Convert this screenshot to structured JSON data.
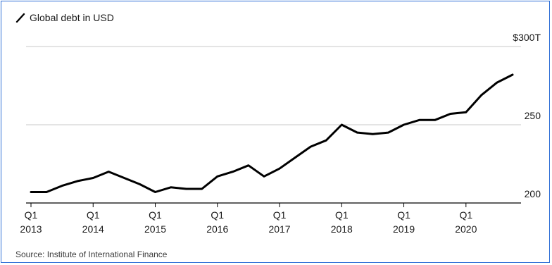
{
  "legend": {
    "label": "Global debt in USD",
    "icon": "diagonal-line-icon"
  },
  "source": "Source: Institute of International Finance",
  "chart_data": {
    "type": "line",
    "title": "",
    "xlabel": "",
    "ylabel": "",
    "ylim": [
      200,
      300
    ],
    "y_ticks": [
      {
        "value": 300,
        "label": "$300T"
      },
      {
        "value": 250,
        "label": "250"
      },
      {
        "value": 200,
        "label": "200"
      }
    ],
    "x_ticks": [
      {
        "q": "Q1",
        "year": "2013"
      },
      {
        "q": "Q1",
        "year": "2014"
      },
      {
        "q": "Q1",
        "year": "2015"
      },
      {
        "q": "Q1",
        "year": "2016"
      },
      {
        "q": "Q1",
        "year": "2017"
      },
      {
        "q": "Q1",
        "year": "2018"
      },
      {
        "q": "Q1",
        "year": "2019"
      },
      {
        "q": "Q1",
        "year": "2020"
      }
    ],
    "grid": "horizontal",
    "line_color": "#000000",
    "series": [
      {
        "name": "Global debt in USD",
        "x": [
          "2013-Q1",
          "2013-Q2",
          "2013-Q3",
          "2013-Q4",
          "2014-Q1",
          "2014-Q2",
          "2014-Q3",
          "2014-Q4",
          "2015-Q1",
          "2015-Q2",
          "2015-Q3",
          "2015-Q4",
          "2016-Q1",
          "2016-Q2",
          "2016-Q3",
          "2016-Q4",
          "2017-Q1",
          "2017-Q2",
          "2017-Q3",
          "2017-Q4",
          "2018-Q1",
          "2018-Q2",
          "2018-Q3",
          "2018-Q4",
          "2019-Q1",
          "2019-Q2",
          "2019-Q3",
          "2019-Q4",
          "2020-Q1",
          "2020-Q2",
          "2020-Q3",
          "2020-Q4"
        ],
        "values": [
          207,
          207,
          211,
          214,
          216,
          220,
          216,
          212,
          207,
          210,
          209,
          209,
          217,
          220,
          224,
          217,
          222,
          229,
          236,
          240,
          250,
          245,
          244,
          245,
          250,
          253,
          253,
          257,
          258,
          269,
          277,
          282
        ]
      }
    ]
  }
}
